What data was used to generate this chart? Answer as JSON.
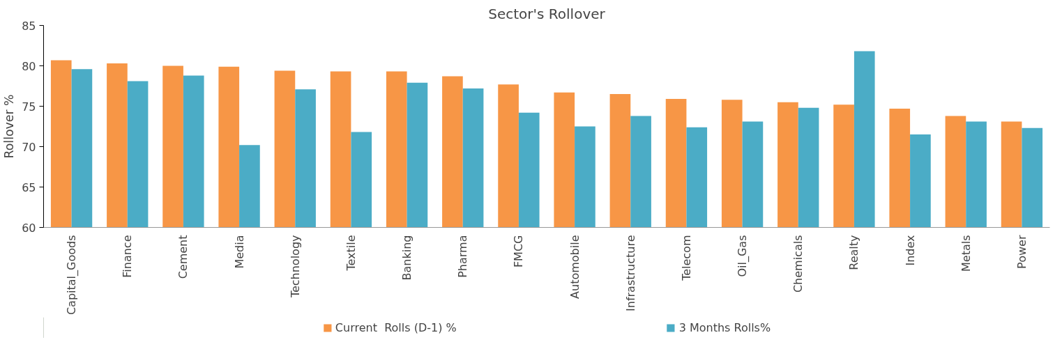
{
  "chart_data": {
    "type": "bar",
    "title": "Sector's Rollover",
    "ylabel": "Rollover %",
    "categories": [
      "Capital_Goods",
      "Finance",
      "Cement",
      "Media",
      "Technology",
      "Textile",
      "Banking",
      "Pharma",
      "FMCG",
      "Automobile",
      "Infrastructure",
      "Telecom",
      "Oil_Gas",
      "Chemicals",
      "Realty",
      "Index",
      "Metals",
      "Power"
    ],
    "series": [
      {
        "name": "Current  Rolls (D-1) %",
        "color": "#f79646",
        "values": [
          80.7,
          80.3,
          80.0,
          79.9,
          79.4,
          79.3,
          79.3,
          78.7,
          77.7,
          76.7,
          76.5,
          75.9,
          75.8,
          75.5,
          75.2,
          74.7,
          73.8,
          73.1
        ]
      },
      {
        "name": "3 Months Rolls%",
        "color": "#4bacc6",
        "values": [
          79.6,
          78.1,
          78.8,
          70.2,
          77.1,
          71.8,
          77.9,
          77.2,
          74.2,
          72.5,
          73.8,
          72.4,
          73.1,
          74.8,
          81.8,
          71.5,
          73.1,
          72.3
        ]
      }
    ],
    "ylim": [
      60,
      85
    ],
    "yticks": [
      60,
      65,
      70,
      75,
      80,
      85
    ],
    "grid": false,
    "legend": "bottom"
  }
}
